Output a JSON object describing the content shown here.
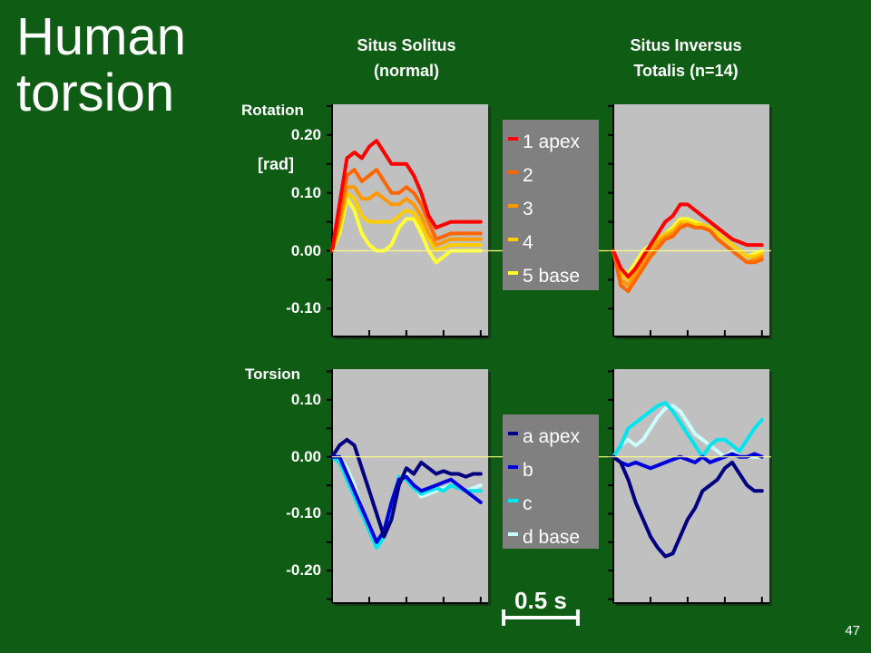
{
  "slide": {
    "title_line1": "Human",
    "title_line2": "torsion",
    "column_left_line1": "Situs Solitus",
    "column_left_line2": "(normal)",
    "column_right_line1": "Situs Inversus",
    "column_right_line2": "Totalis (n=14)",
    "slide_number": "47"
  },
  "colors": {
    "background": "#0f5c14",
    "panel": "#c0c0c0",
    "legend_box": "#808080",
    "zero_line": "#ffff80"
  },
  "chart_data": [
    {
      "type": "line",
      "name": "rotation",
      "ylabel_line1": "Rotation",
      "ylabel_line2": "[rad]",
      "yticks": [
        0.2,
        0.1,
        0.0,
        -0.1
      ],
      "ytick_labels": [
        "0.20",
        "0.10",
        "0.00",
        "-0.10"
      ],
      "ylim": [
        -0.148,
        0.253
      ],
      "xlim": [
        0,
        1.05
      ],
      "scale_bar_label": "0.5 s",
      "scale_bar_seconds": 0.5,
      "series": [
        {
          "name": "5 base",
          "color": "#ffff33",
          "normal": {
            "x": [
              0,
              0.05,
              0.1,
              0.15,
              0.2,
              0.25,
              0.3,
              0.35,
              0.4,
              0.45,
              0.5,
              0.55,
              0.6,
              0.65,
              0.7,
              0.75,
              0.8,
              0.85,
              0.9,
              0.95,
              1.0
            ],
            "y": [
              0.0,
              0.03,
              0.09,
              0.07,
              0.03,
              0.01,
              0.0,
              0.0,
              0.01,
              0.04,
              0.055,
              0.055,
              0.03,
              0.0,
              -0.02,
              -0.01,
              0.0,
              0.0,
              0.0,
              0.0,
              0.0
            ]
          },
          "inversus": {
            "x": [
              0,
              0.05,
              0.1,
              0.15,
              0.2,
              0.25,
              0.3,
              0.35,
              0.4,
              0.45,
              0.5,
              0.55,
              0.6,
              0.65,
              0.7,
              0.75,
              0.8,
              0.85,
              0.9,
              0.95,
              1.0
            ],
            "y": [
              0.0,
              -0.03,
              -0.04,
              -0.02,
              0.0,
              0.01,
              0.02,
              0.03,
              0.04,
              0.055,
              0.055,
              0.05,
              0.045,
              0.04,
              0.03,
              0.02,
              0.01,
              0.0,
              -0.01,
              -0.005,
              0.0
            ]
          }
        },
        {
          "name": "4",
          "color": "#ffcc00",
          "normal": {
            "x": [
              0,
              0.05,
              0.1,
              0.15,
              0.2,
              0.25,
              0.3,
              0.35,
              0.4,
              0.45,
              0.5,
              0.55,
              0.6,
              0.65,
              0.7,
              0.75,
              0.8,
              0.85,
              0.9,
              0.95,
              1.0
            ],
            "y": [
              0.0,
              0.04,
              0.1,
              0.09,
              0.06,
              0.05,
              0.05,
              0.05,
              0.05,
              0.06,
              0.07,
              0.065,
              0.045,
              0.02,
              0.0,
              0.005,
              0.01,
              0.01,
              0.01,
              0.01,
              0.01
            ]
          },
          "inversus": {
            "x": [
              0,
              0.05,
              0.1,
              0.15,
              0.2,
              0.25,
              0.3,
              0.35,
              0.4,
              0.45,
              0.5,
              0.55,
              0.6,
              0.65,
              0.7,
              0.75,
              0.8,
              0.85,
              0.9,
              0.95,
              1.0
            ],
            "y": [
              0.0,
              -0.04,
              -0.05,
              -0.03,
              -0.01,
              0.005,
              0.02,
              0.03,
              0.035,
              0.05,
              0.05,
              0.045,
              0.045,
              0.04,
              0.03,
              0.02,
              0.01,
              0.0,
              -0.01,
              -0.01,
              -0.005
            ]
          }
        },
        {
          "name": "3",
          "color": "#ff9900",
          "normal": {
            "x": [
              0,
              0.05,
              0.1,
              0.15,
              0.2,
              0.25,
              0.3,
              0.35,
              0.4,
              0.45,
              0.5,
              0.55,
              0.6,
              0.65,
              0.7,
              0.75,
              0.8,
              0.85,
              0.9,
              0.95,
              1.0
            ],
            "y": [
              0.0,
              0.05,
              0.11,
              0.11,
              0.09,
              0.09,
              0.1,
              0.09,
              0.08,
              0.08,
              0.09,
              0.08,
              0.06,
              0.03,
              0.01,
              0.015,
              0.02,
              0.02,
              0.02,
              0.02,
              0.02
            ]
          },
          "inversus": {
            "x": [
              0,
              0.05,
              0.1,
              0.15,
              0.2,
              0.25,
              0.3,
              0.35,
              0.4,
              0.45,
              0.5,
              0.55,
              0.6,
              0.65,
              0.7,
              0.75,
              0.8,
              0.85,
              0.9,
              0.95,
              1.0
            ],
            "y": [
              0.0,
              -0.05,
              -0.06,
              -0.04,
              -0.02,
              0.0,
              0.015,
              0.025,
              0.03,
              0.045,
              0.045,
              0.04,
              0.04,
              0.035,
              0.02,
              0.01,
              0.0,
              -0.01,
              -0.02,
              -0.015,
              -0.01
            ]
          }
        },
        {
          "name": "2",
          "color": "#ff6600",
          "normal": {
            "x": [
              0,
              0.05,
              0.1,
              0.15,
              0.2,
              0.25,
              0.3,
              0.35,
              0.4,
              0.45,
              0.5,
              0.55,
              0.6,
              0.65,
              0.7,
              0.75,
              0.8,
              0.85,
              0.9,
              0.95,
              1.0
            ],
            "y": [
              0.0,
              0.06,
              0.13,
              0.14,
              0.12,
              0.13,
              0.14,
              0.12,
              0.1,
              0.1,
              0.11,
              0.1,
              0.08,
              0.05,
              0.02,
              0.025,
              0.03,
              0.03,
              0.03,
              0.03,
              0.03
            ]
          },
          "inversus": {
            "x": [
              0,
              0.05,
              0.1,
              0.15,
              0.2,
              0.25,
              0.3,
              0.35,
              0.4,
              0.45,
              0.5,
              0.55,
              0.6,
              0.65,
              0.7,
              0.75,
              0.8,
              0.85,
              0.9,
              0.95,
              1.0
            ],
            "y": [
              0.0,
              -0.06,
              -0.07,
              -0.05,
              -0.03,
              -0.01,
              0.005,
              0.02,
              0.025,
              0.04,
              0.045,
              0.04,
              0.04,
              0.035,
              0.02,
              0.01,
              0.0,
              -0.01,
              -0.02,
              -0.02,
              -0.015
            ]
          }
        },
        {
          "name": "1 apex",
          "color": "#ff0000",
          "normal": {
            "x": [
              0,
              0.05,
              0.1,
              0.15,
              0.2,
              0.25,
              0.3,
              0.35,
              0.4,
              0.45,
              0.5,
              0.55,
              0.6,
              0.65,
              0.7,
              0.75,
              0.8,
              0.85,
              0.9,
              0.95,
              1.0
            ],
            "y": [
              0.0,
              0.08,
              0.16,
              0.17,
              0.16,
              0.18,
              0.19,
              0.17,
              0.15,
              0.15,
              0.15,
              0.13,
              0.1,
              0.06,
              0.04,
              0.045,
              0.05,
              0.05,
              0.05,
              0.05,
              0.05
            ]
          },
          "inversus": {
            "x": [
              0,
              0.05,
              0.1,
              0.15,
              0.2,
              0.25,
              0.3,
              0.35,
              0.4,
              0.45,
              0.5,
              0.55,
              0.6,
              0.65,
              0.7,
              0.75,
              0.8,
              0.85,
              0.9,
              0.95,
              1.0
            ],
            "y": [
              0.0,
              -0.03,
              -0.045,
              -0.03,
              -0.01,
              0.01,
              0.03,
              0.05,
              0.06,
              0.08,
              0.08,
              0.07,
              0.06,
              0.05,
              0.04,
              0.03,
              0.02,
              0.015,
              0.01,
              0.01,
              0.01
            ]
          }
        }
      ]
    },
    {
      "type": "line",
      "name": "torsion",
      "ylabel_line1": "Torsion",
      "yticks": [
        0.1,
        0.0,
        -0.1,
        -0.2
      ],
      "ytick_labels": [
        "0.10",
        "0.00",
        "-0.10",
        "-0.20"
      ],
      "ylim": [
        -0.257,
        0.154
      ],
      "xlim": [
        0,
        1.05
      ],
      "series": [
        {
          "name": "d base",
          "color": "#ccffff",
          "normal": {
            "x": [
              0,
              0.05,
              0.1,
              0.15,
              0.2,
              0.25,
              0.3,
              0.35,
              0.4,
              0.45,
              0.5,
              0.55,
              0.6,
              0.65,
              0.7,
              0.75,
              0.8,
              0.85,
              0.9,
              0.95,
              1.0
            ],
            "y": [
              0.0,
              0.0,
              -0.02,
              -0.05,
              -0.09,
              -0.12,
              -0.155,
              -0.14,
              -0.09,
              -0.04,
              -0.03,
              -0.05,
              -0.07,
              -0.065,
              -0.06,
              -0.055,
              -0.05,
              -0.05,
              -0.06,
              -0.055,
              -0.05
            ]
          },
          "inversus": {
            "x": [
              0,
              0.05,
              0.1,
              0.15,
              0.2,
              0.25,
              0.3,
              0.35,
              0.4,
              0.45,
              0.5,
              0.55,
              0.6,
              0.65,
              0.7,
              0.75,
              0.8,
              0.85,
              0.9,
              0.95,
              1.0
            ],
            "y": [
              0.0,
              0.02,
              0.03,
              0.02,
              0.03,
              0.05,
              0.07,
              0.085,
              0.09,
              0.08,
              0.06,
              0.04,
              0.03,
              0.02,
              0.01,
              0.0,
              0.01,
              0.0,
              0.0,
              0.0,
              0.0
            ]
          }
        },
        {
          "name": "c",
          "color": "#00e5ee",
          "normal": {
            "x": [
              0,
              0.05,
              0.1,
              0.15,
              0.2,
              0.25,
              0.3,
              0.35,
              0.4,
              0.45,
              0.5,
              0.55,
              0.6,
              0.65,
              0.7,
              0.75,
              0.8,
              0.85,
              0.9,
              0.95,
              1.0
            ],
            "y": [
              0.0,
              -0.01,
              -0.04,
              -0.07,
              -0.1,
              -0.13,
              -0.16,
              -0.14,
              -0.09,
              -0.035,
              -0.04,
              -0.055,
              -0.065,
              -0.06,
              -0.055,
              -0.06,
              -0.05,
              -0.055,
              -0.06,
              -0.06,
              -0.06
            ]
          },
          "inversus": {
            "x": [
              0,
              0.05,
              0.1,
              0.15,
              0.2,
              0.25,
              0.3,
              0.35,
              0.4,
              0.45,
              0.5,
              0.55,
              0.6,
              0.65,
              0.7,
              0.75,
              0.8,
              0.85,
              0.9,
              0.95,
              1.0
            ],
            "y": [
              0.0,
              0.02,
              0.05,
              0.06,
              0.07,
              0.08,
              0.09,
              0.095,
              0.08,
              0.06,
              0.04,
              0.02,
              0.0,
              0.02,
              0.03,
              0.03,
              0.02,
              0.01,
              0.03,
              0.05,
              0.065
            ]
          }
        },
        {
          "name": "b",
          "color": "#0000dd",
          "normal": {
            "x": [
              0,
              0.05,
              0.1,
              0.15,
              0.2,
              0.25,
              0.3,
              0.35,
              0.4,
              0.45,
              0.5,
              0.55,
              0.6,
              0.65,
              0.7,
              0.75,
              0.8,
              0.85,
              0.9,
              0.95,
              1.0
            ],
            "y": [
              0.0,
              0.0,
              -0.03,
              -0.06,
              -0.09,
              -0.12,
              -0.15,
              -0.13,
              -0.08,
              -0.04,
              -0.035,
              -0.05,
              -0.06,
              -0.055,
              -0.05,
              -0.045,
              -0.04,
              -0.05,
              -0.06,
              -0.07,
              -0.08
            ]
          },
          "inversus": {
            "x": [
              0,
              0.05,
              0.1,
              0.15,
              0.2,
              0.25,
              0.3,
              0.35,
              0.4,
              0.45,
              0.5,
              0.55,
              0.6,
              0.65,
              0.7,
              0.75,
              0.8,
              0.85,
              0.9,
              0.95,
              1.0
            ],
            "y": [
              0.0,
              -0.01,
              -0.015,
              -0.01,
              -0.015,
              -0.02,
              -0.015,
              -0.01,
              -0.005,
              0.0,
              -0.005,
              -0.01,
              0.0,
              -0.01,
              -0.005,
              0.0,
              0.005,
              0.0,
              0.0,
              0.005,
              0.0
            ]
          }
        },
        {
          "name": "a apex",
          "color": "#000080",
          "normal": {
            "x": [
              0,
              0.05,
              0.1,
              0.15,
              0.2,
              0.25,
              0.3,
              0.35,
              0.4,
              0.45,
              0.5,
              0.55,
              0.6,
              0.65,
              0.7,
              0.75,
              0.8,
              0.85,
              0.9,
              0.95,
              1.0
            ],
            "y": [
              0.0,
              0.02,
              0.03,
              0.02,
              -0.02,
              -0.06,
              -0.1,
              -0.14,
              -0.11,
              -0.05,
              -0.02,
              -0.03,
              -0.01,
              -0.02,
              -0.03,
              -0.025,
              -0.03,
              -0.03,
              -0.035,
              -0.03,
              -0.03
            ]
          },
          "inversus": {
            "x": [
              0,
              0.05,
              0.1,
              0.15,
              0.2,
              0.25,
              0.3,
              0.35,
              0.4,
              0.45,
              0.5,
              0.55,
              0.6,
              0.65,
              0.7,
              0.75,
              0.8,
              0.85,
              0.9,
              0.95,
              1.0
            ],
            "y": [
              0.0,
              -0.01,
              -0.04,
              -0.08,
              -0.11,
              -0.14,
              -0.16,
              -0.175,
              -0.17,
              -0.14,
              -0.11,
              -0.09,
              -0.06,
              -0.05,
              -0.04,
              -0.02,
              -0.01,
              -0.03,
              -0.05,
              -0.06,
              -0.06
            ]
          }
        }
      ]
    }
  ]
}
